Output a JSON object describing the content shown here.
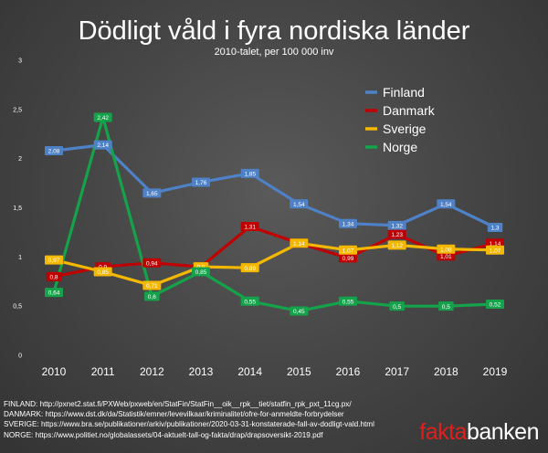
{
  "chart_data": {
    "type": "line",
    "title": "Dödligt våld i fyra nordiska länder",
    "subtitle": "2010-talet, per 100 000 inv",
    "x": [
      2010,
      2011,
      2012,
      2013,
      2014,
      2015,
      2016,
      2017,
      2018,
      2019
    ],
    "x_tick_labels": [
      "2010",
      "2011",
      "2012",
      "2013",
      "2014",
      "2015",
      "2016",
      "2017",
      "2018",
      "2019"
    ],
    "y_ticks": [
      0,
      0.5,
      1,
      1.5,
      2,
      2.5,
      3
    ],
    "y_tick_labels": [
      "0",
      "0,5",
      "1",
      "1,5",
      "2",
      "2,5",
      "3"
    ],
    "ylim": [
      0,
      3
    ],
    "grid": false,
    "legend_position": "top-right",
    "series": [
      {
        "name": "Finland",
        "color": "#4f81c7",
        "values": [
          2.08,
          2.14,
          1.65,
          1.76,
          1.85,
          1.54,
          1.34,
          1.32,
          1.54,
          1.3
        ],
        "labels": [
          "2,08",
          "2,14",
          "1,65",
          "1,76",
          "1,85",
          "1,54",
          "1,34",
          "1,32",
          "1,54",
          "1,3"
        ]
      },
      {
        "name": "Danmark",
        "color": "#c00000",
        "values": [
          0.8,
          0.9,
          0.94,
          0.9,
          1.31,
          1.14,
          0.99,
          1.23,
          1.01,
          1.14
        ],
        "labels": [
          "0,8",
          "0,9",
          "0,94",
          "0,9",
          "1,31",
          "1,14",
          "0,99",
          "1,23",
          "1,01",
          "1,14"
        ]
      },
      {
        "name": "Sverige",
        "color": "#f5b800",
        "values": [
          0.97,
          0.85,
          0.71,
          0.9,
          0.89,
          1.14,
          1.07,
          1.12,
          1.08,
          1.07
        ],
        "labels": [
          "0,97",
          "0,85",
          "0,71",
          "0,9",
          "0,89",
          "1,14",
          "1,07",
          "1,12",
          "1,08",
          "1,07"
        ]
      },
      {
        "name": "Norge",
        "color": "#14a34a",
        "values": [
          0.64,
          2.42,
          0.6,
          0.85,
          0.55,
          0.45,
          0.55,
          0.5,
          0.5,
          0.52
        ],
        "labels": [
          "0,64",
          "2,42",
          "0,6",
          "0,85",
          "0,55",
          "0,45",
          "0,55",
          "0,5",
          "0,5",
          "0,52"
        ]
      }
    ]
  },
  "sources": [
    "FINLAND: http://pxnet2.stat.fi/PXWeb/pxweb/en/StatFin/StatFin__oik__rpk__tiet/statfin_rpk_pxt_11cg.px/",
    "DANMARK: https://www.dst.dk/da/Statistik/emner/levevilkaar/kriminalitet/ofre-for-anmeldte-forbrydelser",
    "SVERIGE: https://www.bra.se/publikationer/arkiv/publikationer/2020-03-31-konstaterade-fall-av-dodligt-vald.html",
    "NORGE: https://www.politiet.no/globalassets/04-aktuelt-tall-og-fakta/drap/drapsoversikt-2019.pdf"
  ],
  "logo": {
    "part1": "fakta",
    "part2": "banken"
  }
}
